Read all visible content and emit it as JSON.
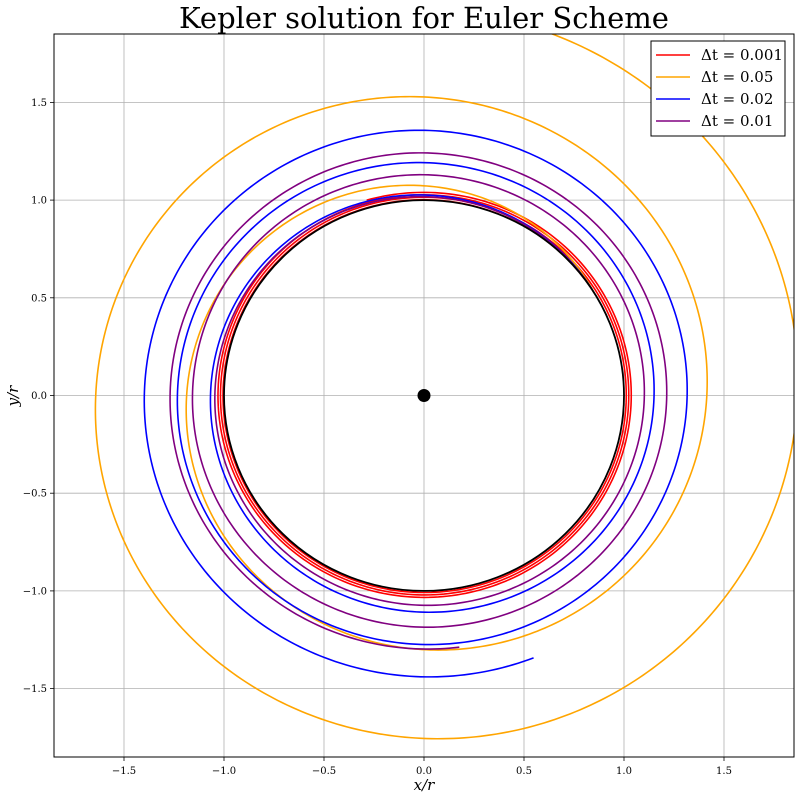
{
  "chart_data": {
    "type": "line",
    "title": "Kepler solution for Euler Scheme",
    "xlabel": "x/r",
    "ylabel": "y/r",
    "xlim": [
      -1.85,
      1.85
    ],
    "ylim": [
      -1.85,
      1.85
    ],
    "xticks": [
      -1.5,
      -1.0,
      -0.5,
      0.0,
      0.5,
      1.0,
      1.5
    ],
    "yticks": [
      -1.5,
      -1.0,
      -0.5,
      0.0,
      0.5,
      1.0,
      1.5
    ],
    "xtick_labels": [
      "−1.5",
      "−1.0",
      "−0.5",
      "0.0",
      "0.5",
      "1.0",
      "1.5"
    ],
    "ytick_labels": [
      "−1.5",
      "−1.0",
      "−0.5",
      "0.0",
      "0.5",
      "1.0",
      "1.5"
    ],
    "grid": true,
    "legend_position": "top-right",
    "central_body": {
      "x": 0.0,
      "y": 0.0,
      "color": "#000000"
    },
    "reference_orbit": {
      "radius": 1.0,
      "color": "#000000"
    },
    "series": [
      {
        "name": "Δt = 0.001",
        "color": "#ff0000",
        "start_angle_deg": 34,
        "start_radius": 1.0,
        "end_radius": 1.04,
        "turns": 3.2
      },
      {
        "name": "Δt = 0.05",
        "color": "#ffa500",
        "start_angle_deg": 32,
        "start_radius": 1.0,
        "end_radius": 2.0,
        "turns": 2.2
      },
      {
        "name": "Δt = 0.02",
        "color": "#0000ff",
        "start_angle_deg": 33,
        "start_radius": 1.0,
        "end_radius": 1.45,
        "turns": 2.72
      },
      {
        "name": "Δt = 0.01",
        "color": "#800080",
        "start_angle_deg": 33,
        "start_radius": 1.0,
        "end_radius": 1.3,
        "turns": 2.68
      }
    ]
  }
}
